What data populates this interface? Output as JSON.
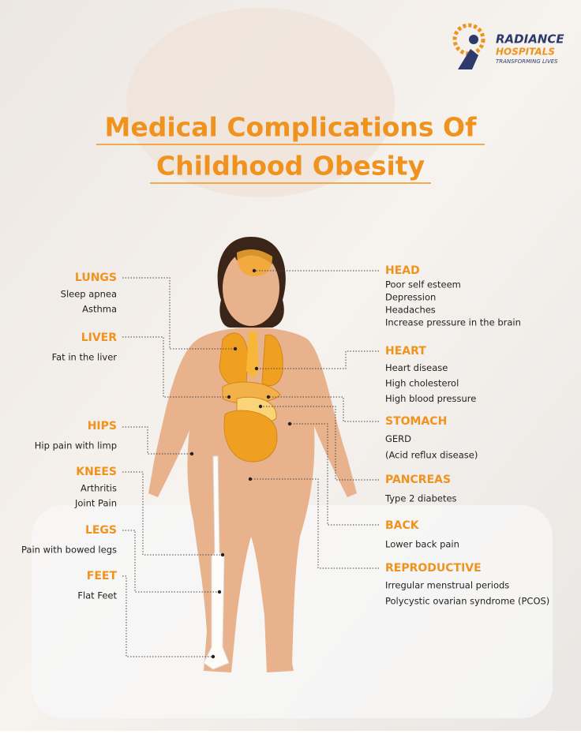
{
  "logo": {
    "name": "RADIANCE",
    "subname": "HOSPITALS",
    "tagline": "TRANSFORMING LIVES"
  },
  "title": [
    "Medical Complications Of",
    "Childhood Obesity"
  ],
  "left": [
    {
      "label": "LUNGS",
      "items": [
        "Sleep apnea",
        "Asthma"
      ]
    },
    {
      "label": "LIVER",
      "items": [
        "Fat in the liver"
      ]
    },
    {
      "label": "HIPS",
      "items": [
        "Hip pain with limp"
      ]
    },
    {
      "label": "KNEES",
      "items": [
        "Arthritis",
        "Joint Pain"
      ]
    },
    {
      "label": "LEGS",
      "items": [
        "Pain with bowed legs"
      ]
    },
    {
      "label": "FEET",
      "items": [
        "Flat Feet"
      ]
    }
  ],
  "right": [
    {
      "label": "HEAD",
      "items": [
        "Poor self esteem",
        "Depression",
        "Headaches",
        "Increase pressure in the brain"
      ]
    },
    {
      "label": "HEART",
      "items": [
        "Heart disease",
        "High cholesterol",
        "High blood pressure"
      ]
    },
    {
      "label": "STOMACH",
      "items": [
        "GERD",
        "(Acid reflux disease)"
      ]
    },
    {
      "label": "PANCREAS",
      "items": [
        "Type 2 diabetes"
      ]
    },
    {
      "label": "BACK",
      "items": [
        "Lower back pain"
      ]
    },
    {
      "label": "REPRODUCTIVE",
      "items": [
        "Irregular menstrual periods",
        "Polycystic ovarian syndrome (PCOS)"
      ]
    }
  ]
}
